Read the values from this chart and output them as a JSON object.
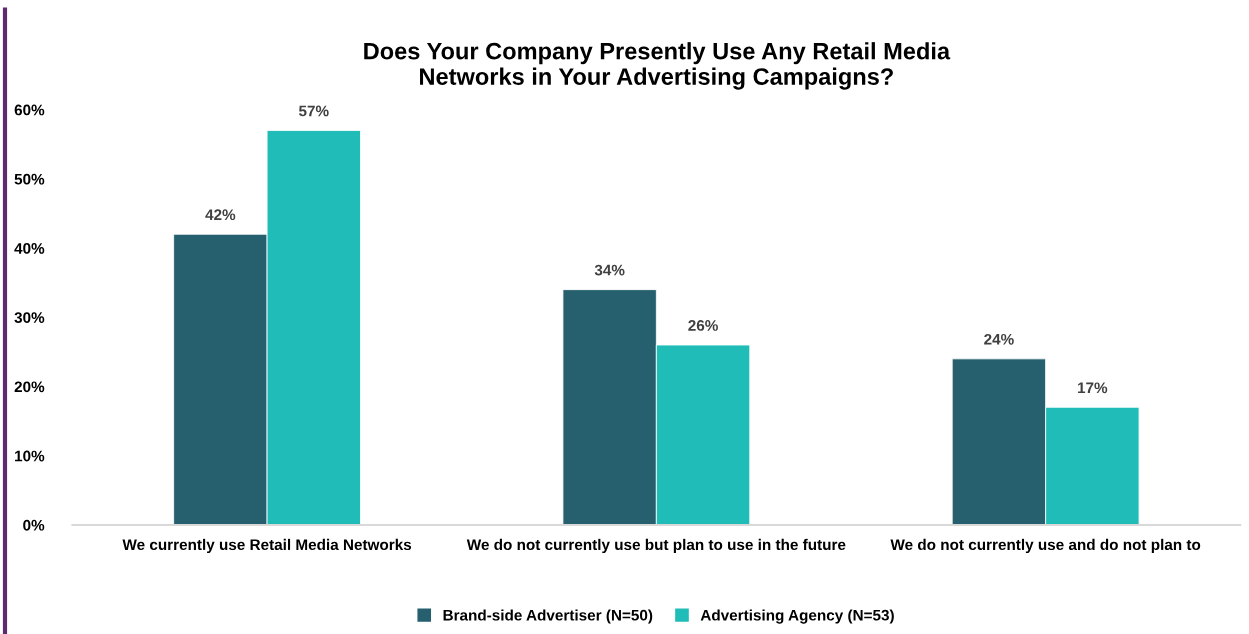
{
  "chart_data": {
    "type": "bar",
    "title": "Does Your Company Presently Use Any Retail Media\nNetworks in Your Advertising Campaigns?",
    "categories": [
      "We currently use Retail Media Networks",
      "We do not currently use but plan to use in the future",
      "We do not currently use and do not plan to"
    ],
    "series": [
      {
        "name": "Brand-side Advertiser (N=50)",
        "color": "#265f6e",
        "values": [
          42,
          34,
          24
        ],
        "value_labels": [
          "42%",
          "34%",
          "24%"
        ]
      },
      {
        "name": "Advertising Agency (N=53)",
        "color": "#20bdb8",
        "values": [
          57,
          26,
          17
        ],
        "value_labels": [
          "57%",
          "26%",
          "17%"
        ]
      }
    ],
    "ylim": [
      0,
      60
    ],
    "yticks": [
      {
        "value": 0,
        "label": "0%"
      },
      {
        "value": 10,
        "label": "10%"
      },
      {
        "value": 20,
        "label": "20%"
      },
      {
        "value": 30,
        "label": "30%"
      },
      {
        "value": 40,
        "label": "40%"
      },
      {
        "value": 50,
        "label": "50%"
      },
      {
        "value": 60,
        "label": "60%"
      }
    ],
    "grid": false,
    "legend": "bottom"
  }
}
